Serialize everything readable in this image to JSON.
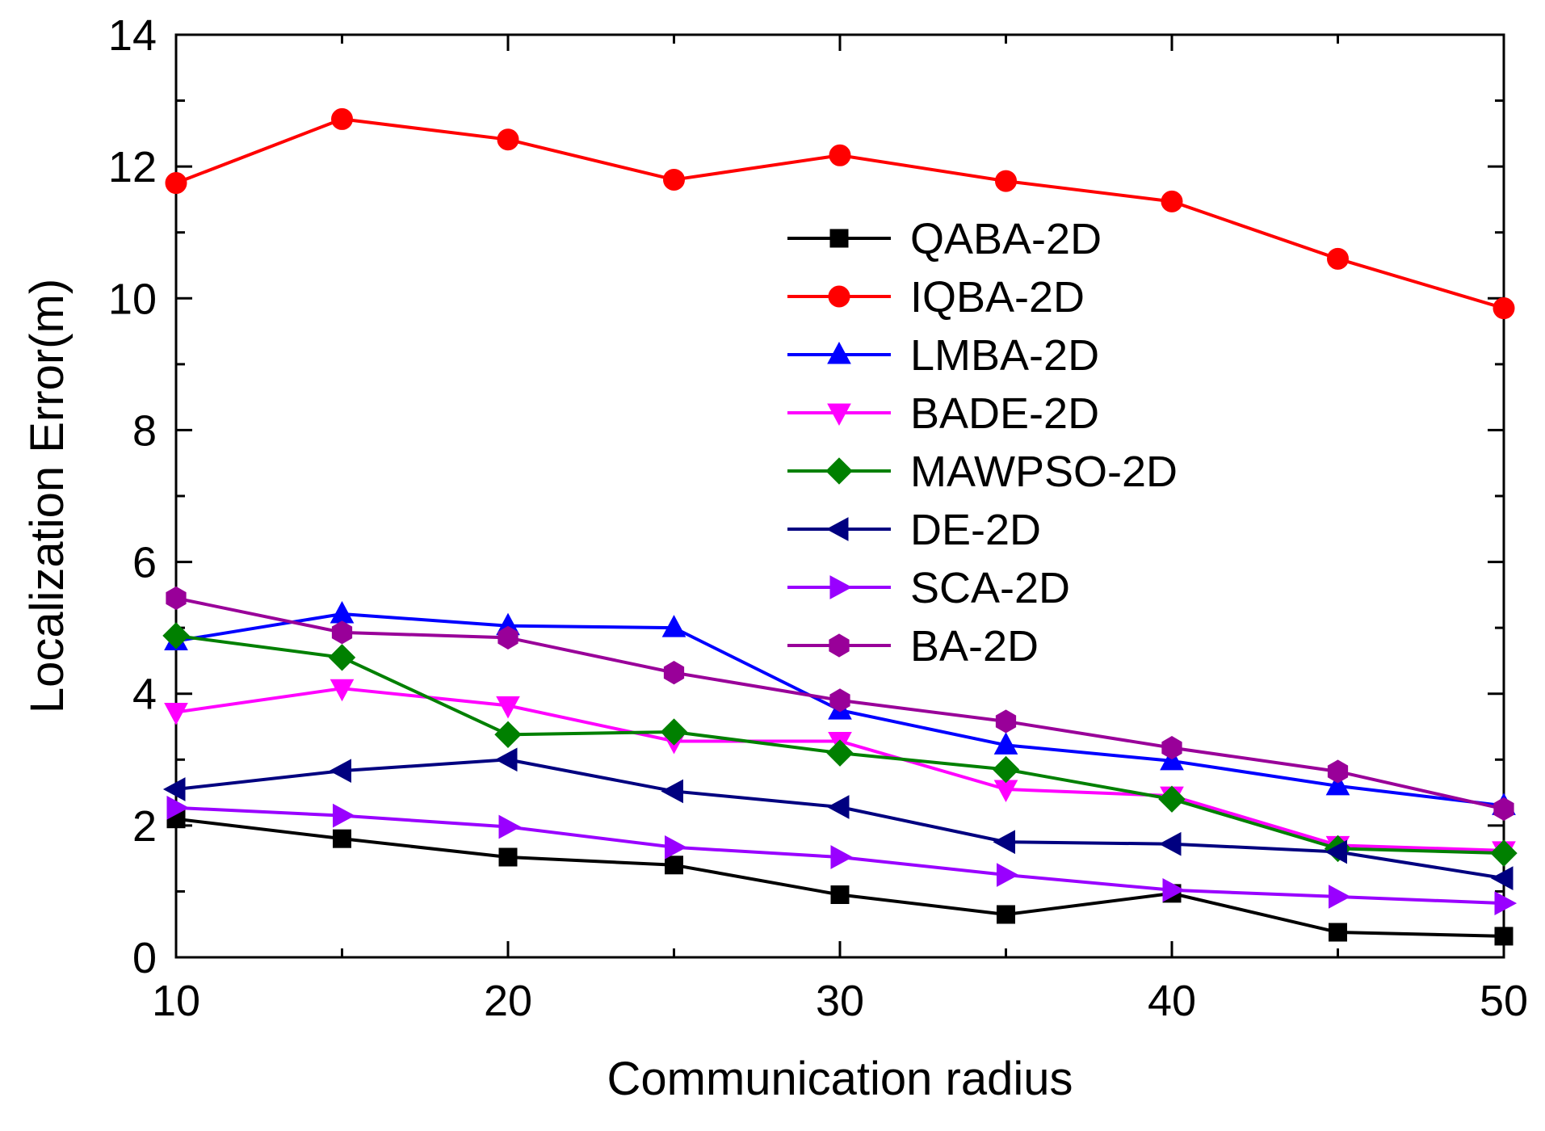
{
  "chart_data": {
    "type": "line",
    "title": "",
    "xlabel": "Communication radius",
    "ylabel": "Localization Error(m)",
    "xlim": [
      10,
      50
    ],
    "ylim": [
      0,
      14
    ],
    "xticks": [
      10,
      20,
      30,
      40,
      50
    ],
    "yticks": [
      0,
      2,
      4,
      6,
      8,
      10,
      12,
      14
    ],
    "grid": false,
    "legend_position": "upper-right",
    "x": [
      10,
      15,
      20,
      25,
      30,
      35,
      40,
      45,
      50
    ],
    "series": [
      {
        "name": "QABA-2D",
        "color": "#000000",
        "marker": "square",
        "values": [
          2.1,
          1.8,
          1.52,
          1.4,
          0.95,
          0.65,
          0.97,
          0.38,
          0.32
        ]
      },
      {
        "name": "IQBA-2D",
        "color": "#ff0000",
        "marker": "circle",
        "values": [
          11.75,
          12.72,
          12.41,
          11.8,
          12.17,
          11.78,
          11.47,
          10.6,
          9.85
        ]
      },
      {
        "name": "LMBA-2D",
        "color": "#0000ff",
        "marker": "triangle-up",
        "values": [
          4.8,
          5.21,
          5.03,
          5.0,
          3.75,
          3.22,
          2.98,
          2.6,
          2.3
        ]
      },
      {
        "name": "BADE-2D",
        "color": "#ff00ff",
        "marker": "triangle-down",
        "values": [
          3.72,
          4.08,
          3.82,
          3.28,
          3.28,
          2.55,
          2.45,
          1.7,
          1.62
        ]
      },
      {
        "name": "MAWPSO-2D",
        "color": "#008000",
        "marker": "diamond",
        "values": [
          4.88,
          4.55,
          3.38,
          3.42,
          3.1,
          2.85,
          2.4,
          1.65,
          1.58
        ]
      },
      {
        "name": "DE-2D",
        "color": "#000080",
        "marker": "triangle-left",
        "values": [
          2.55,
          2.83,
          3.0,
          2.52,
          2.28,
          1.75,
          1.72,
          1.6,
          1.2
        ]
      },
      {
        "name": "SCA-2D",
        "color": "#9900ff",
        "marker": "triangle-right",
        "values": [
          2.27,
          2.15,
          1.98,
          1.67,
          1.52,
          1.25,
          1.02,
          0.92,
          0.82
        ]
      },
      {
        "name": "BA-2D",
        "color": "#990099",
        "marker": "hexagon",
        "values": [
          5.45,
          4.93,
          4.85,
          4.32,
          3.9,
          3.58,
          3.18,
          2.82,
          2.25
        ]
      }
    ]
  }
}
